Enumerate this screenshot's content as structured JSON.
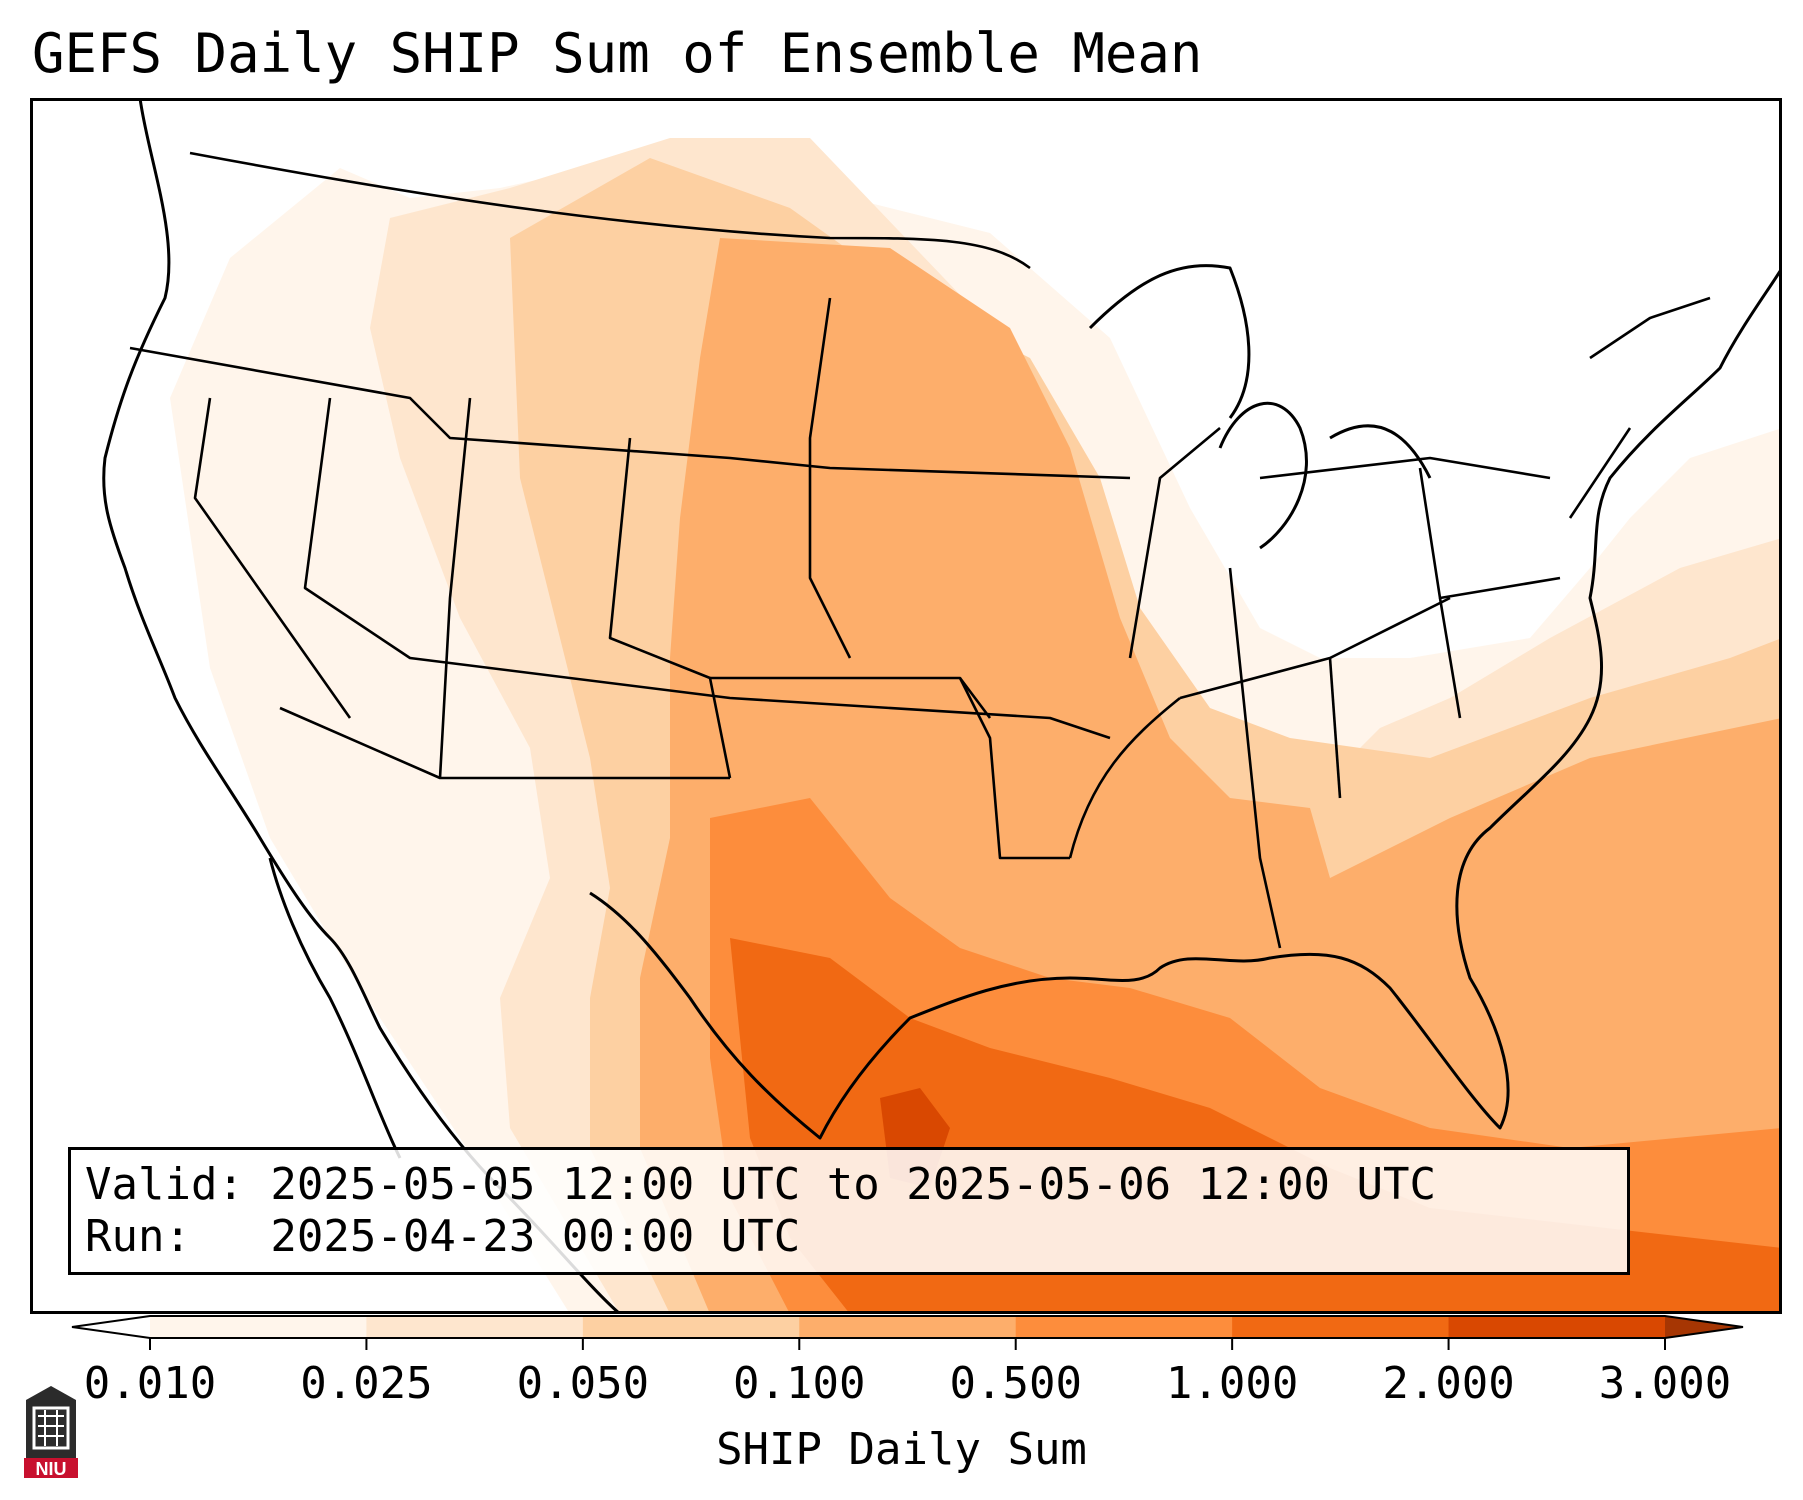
{
  "title": "GEFS Daily SHIP Sum of Ensemble Mean",
  "info": {
    "valid_line": "Valid: 2025-05-05 12:00 UTC to 2025-05-06 12:00 UTC",
    "run_line": "Run:   2025-04-23 00:00 UTC"
  },
  "colorbar": {
    "label": "SHIP Daily Sum",
    "ticks": [
      "0.010",
      "0.025",
      "0.050",
      "0.100",
      "0.500",
      "1.000",
      "2.000",
      "3.000"
    ],
    "colors": [
      "#fff5eb",
      "#fee6ce",
      "#fdd0a2",
      "#fdae6b",
      "#fd8d3c",
      "#f16913",
      "#d94801"
    ],
    "extend_low_color": "#ffffff",
    "extend_high_color": "#a63603"
  },
  "map": {
    "projection": "Lambert conformal CONUS",
    "field": "SHIP Daily Sum",
    "highest_values_region": "Texas Gulf Coast and western Gulf of Mexico",
    "boundaries": [
      "coastlines",
      "country borders",
      "state borders"
    ]
  },
  "logo": {
    "text": "NIU"
  }
}
